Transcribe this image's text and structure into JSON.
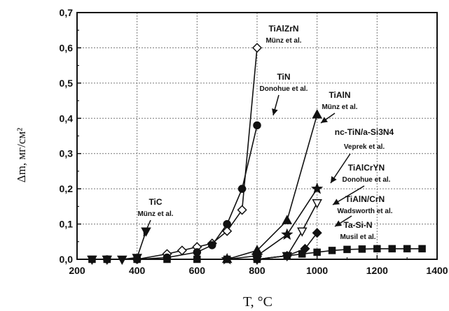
{
  "chart_data": {
    "type": "line",
    "xlabel": "T, °C",
    "ylabel": "Δm, мг/см²",
    "xlim": [
      200,
      1400
    ],
    "ylim": [
      0,
      0.7
    ],
    "xticks": [
      "200",
      "400",
      "600",
      "800",
      "1000",
      "1200",
      "1400"
    ],
    "yticks": [
      "0,0",
      "0,1",
      "0,2",
      "0,3",
      "0,4",
      "0,5",
      "0,6",
      "0,7"
    ],
    "grid": true,
    "series": [
      {
        "name": "TiC",
        "author": "Münz et al.",
        "marker": "triangle-down",
        "filled": true,
        "x": [
          250,
          300,
          350,
          400,
          430
        ],
        "y": [
          0,
          0,
          0,
          0.005,
          0.08
        ]
      },
      {
        "name": "TiAlZrN",
        "author": "Münz et al.",
        "marker": "diamond",
        "filled": false,
        "x": [
          400,
          500,
          550,
          600,
          650,
          700,
          750,
          800
        ],
        "y": [
          0,
          0.015,
          0.025,
          0.035,
          0.045,
          0.08,
          0.14,
          0.6
        ]
      },
      {
        "name": "TiN",
        "author": "Donohue et al.",
        "marker": "circle",
        "filled": true,
        "x": [
          300,
          400,
          500,
          600,
          650,
          700,
          750,
          800
        ],
        "y": [
          0,
          0,
          0.005,
          0.02,
          0.04,
          0.1,
          0.2,
          0.38
        ]
      },
      {
        "name": "TiAlN",
        "author": "Münz et al.",
        "marker": "triangle-up",
        "filled": true,
        "x": [
          700,
          800,
          900,
          1000
        ],
        "y": [
          0,
          0.025,
          0.11,
          0.41
        ]
      },
      {
        "name": "nc-TiN/a-Si3N4",
        "author": "Veprek et al.",
        "marker": "star",
        "filled": true,
        "x": [
          700,
          800,
          900,
          1000
        ],
        "y": [
          0,
          0.01,
          0.07,
          0.2
        ]
      },
      {
        "name": "TiAlCrYN",
        "author": "Donohue et al.",
        "marker": "triangle-down",
        "filled": false,
        "x": [
          800,
          900,
          950,
          1000
        ],
        "y": [
          0,
          0.01,
          0.08,
          0.16
        ]
      },
      {
        "name": "TiAlN/CrN",
        "author": "Wadsworth et al.",
        "marker": "diamond",
        "filled": true,
        "x": [
          800,
          900,
          960,
          1000
        ],
        "y": [
          0,
          0.01,
          0.03,
          0.075
        ]
      },
      {
        "name": "Ta-Si-N",
        "author": "Musil et al.",
        "marker": "square",
        "filled": true,
        "x": [
          250,
          300,
          400,
          500,
          600,
          700,
          800,
          900,
          950,
          1000,
          1050,
          1100,
          1150,
          1200,
          1250,
          1300,
          1350
        ],
        "y": [
          0,
          0,
          0,
          0,
          0,
          0,
          0,
          0.01,
          0.015,
          0.02,
          0.025,
          0.028,
          0.029,
          0.03,
          0.03,
          0.03,
          0.03
        ]
      }
    ],
    "annotations": [
      {
        "name": "TiC",
        "author": "Münz et al."
      },
      {
        "name": "TiAlZrN",
        "author": "Münz et al."
      },
      {
        "name": "TiN",
        "author": "Donohue et al."
      },
      {
        "name": "TiAlN",
        "author": "Münz et al."
      },
      {
        "name": "nc-TiN/a-Si3N4",
        "author": "Veprek et al."
      },
      {
        "name": "TiAlCrYN",
        "author": "Donohue et al."
      },
      {
        "name": "TiAlN/CrN",
        "author": "Wadsworth et al."
      },
      {
        "name": "Ta-Si-N",
        "author": "Musil et al."
      }
    ]
  }
}
